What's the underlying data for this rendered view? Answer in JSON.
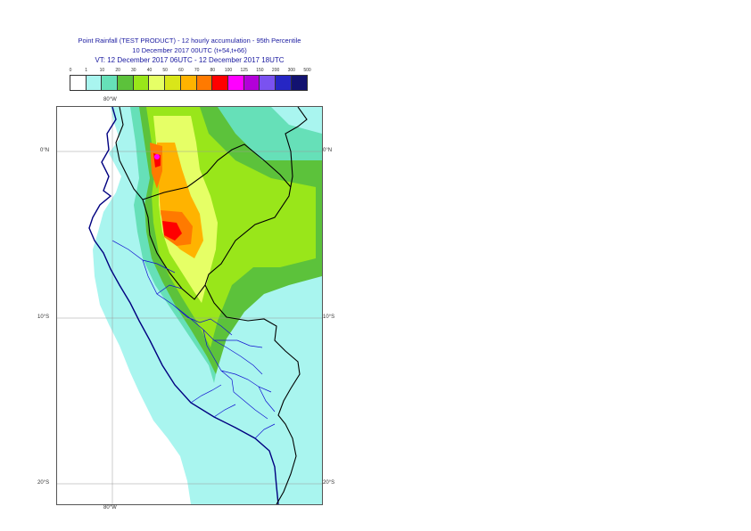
{
  "title": {
    "line1": "Point Rainfall (TEST PRODUCT) - 12 hourly accumulation - 95th Percentile",
    "line2": "10 December 2017 00UTC (t+54,t+66)",
    "line3": "VT: 12 December 2017 06UTC - 12 December 2017 18UTC"
  },
  "legend": {
    "ticks": [
      "0",
      "1",
      "10",
      "20",
      "30",
      "40",
      "50",
      "60",
      "70",
      "80",
      "100",
      "125",
      "150",
      "200",
      "300",
      "500"
    ],
    "colors": [
      "#ffffff",
      "#a9f5ef",
      "#66e0b8",
      "#5cc23b",
      "#99e61a",
      "#e6ff66",
      "#d9e619",
      "#ffb300",
      "#ff7a00",
      "#ff0000",
      "#ff00ff",
      "#b300d9",
      "#7a52f0",
      "#2626c4",
      "#121270"
    ]
  },
  "map": {
    "colors": {
      "sea": "#ffffff",
      "light": "#a9f5ef",
      "teal": "#66e0b8",
      "green": "#5cc23b",
      "lime": "#99e61a",
      "yellow": "#e6ff66",
      "gold": "#d9e619",
      "orange": "#ffb300",
      "dark-orange": "#ff7a00",
      "red": "#ff0000",
      "magenta": "#ff00ff",
      "coast": "#000080",
      "border": "#000000",
      "region": "#1010d0",
      "grid": "#999999"
    },
    "labels": {
      "lon_top": "80°W",
      "lon_bottom": "80°W",
      "lat_0_left": "0°N",
      "lat_0_right": "0°N",
      "lat_10_left": "10°S",
      "lat_10_right": "10°S",
      "lat_20_left": "20°S",
      "lat_20_right": "20°S"
    }
  }
}
